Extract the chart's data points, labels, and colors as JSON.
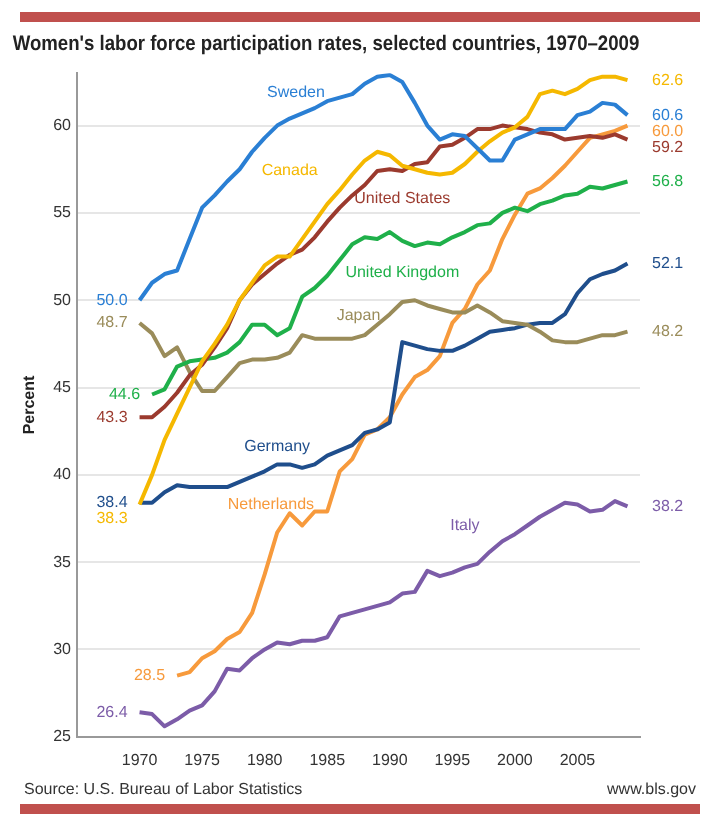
{
  "chart_data": {
    "type": "line",
    "title": "Women's labor force participation rates, selected countries, 1970–2009",
    "ylabel": "Percent",
    "annotations": [
      "Source: U.S. Bureau of Labor Statistics",
      "www.bls.gov"
    ],
    "x": [
      1970,
      1971,
      1972,
      1973,
      1974,
      1975,
      1976,
      1977,
      1978,
      1979,
      1980,
      1981,
      1982,
      1983,
      1984,
      1985,
      1986,
      1987,
      1988,
      1989,
      1990,
      1991,
      1992,
      1993,
      1994,
      1995,
      1996,
      1997,
      1998,
      1999,
      2000,
      2001,
      2002,
      2003,
      2004,
      2005,
      2006,
      2007,
      2008,
      2009
    ],
    "xlim": [
      1965,
      2010
    ],
    "xticks": [
      1970,
      1975,
      1980,
      1985,
      1990,
      1995,
      2000,
      2005
    ],
    "ylim": [
      25,
      63
    ],
    "yticks": [
      25,
      30,
      35,
      40,
      45,
      50,
      55,
      60
    ],
    "grid": "y",
    "series": [
      {
        "name": "Sweden",
        "color": "#2a7fd4",
        "values": [
          50.0,
          51.0,
          51.5,
          51.7,
          53.5,
          55.3,
          56.0,
          56.8,
          57.5,
          58.5,
          59.3,
          60.0,
          60.4,
          60.7,
          61.0,
          61.4,
          61.6,
          61.8,
          62.4,
          62.8,
          62.9,
          62.5,
          61.3,
          60.0,
          59.2,
          59.5,
          59.4,
          58.7,
          58.0,
          58.0,
          59.2,
          59.5,
          59.8,
          59.8,
          59.8,
          60.6,
          60.8,
          61.3,
          61.2,
          60.6
        ],
        "value_labels": [
          "50.0",
          null,
          null,
          null,
          null,
          null,
          null,
          null,
          null,
          null,
          null,
          null,
          null,
          null,
          null,
          null,
          null,
          null,
          null,
          null,
          null,
          null,
          null,
          null,
          null,
          null,
          null,
          null,
          null,
          null,
          null,
          null,
          null,
          null,
          null,
          null,
          null,
          null,
          null,
          "60.6"
        ]
      },
      {
        "name": "Canada",
        "color": "#f5b800",
        "values": [
          38.3,
          40.0,
          42.0,
          43.5,
          45.0,
          46.5,
          47.5,
          48.6,
          50.0,
          51.0,
          52.0,
          52.5,
          52.5,
          53.5,
          54.5,
          55.5,
          56.3,
          57.2,
          58.0,
          58.5,
          58.3,
          57.7,
          57.5,
          57.3,
          57.2,
          57.3,
          57.8,
          58.5,
          59.1,
          59.6,
          59.9,
          60.5,
          61.8,
          62.0,
          61.8,
          62.1,
          62.6,
          62.8,
          62.8,
          62.6
        ],
        "value_labels": [
          "38.3",
          null,
          null,
          null,
          null,
          null,
          null,
          null,
          null,
          null,
          null,
          null,
          null,
          null,
          null,
          null,
          null,
          null,
          null,
          null,
          null,
          null,
          null,
          null,
          null,
          null,
          null,
          null,
          null,
          null,
          null,
          null,
          null,
          null,
          null,
          null,
          null,
          null,
          null,
          "62.6"
        ]
      },
      {
        "name": "United States",
        "color": "#9b3a2e",
        "values": [
          43.3,
          43.3,
          43.9,
          44.7,
          45.7,
          46.3,
          47.3,
          48.4,
          50.0,
          50.9,
          51.5,
          52.1,
          52.6,
          52.9,
          53.6,
          54.5,
          55.3,
          56.0,
          56.6,
          57.4,
          57.5,
          57.4,
          57.8,
          57.9,
          58.8,
          58.9,
          59.3,
          59.8,
          59.8,
          60.0,
          59.9,
          59.8,
          59.6,
          59.5,
          59.2,
          59.3,
          59.4,
          59.3,
          59.5,
          59.2
        ],
        "value_labels": [
          "43.3",
          null,
          null,
          null,
          null,
          null,
          null,
          null,
          null,
          null,
          null,
          null,
          null,
          null,
          null,
          null,
          null,
          null,
          null,
          null,
          null,
          null,
          null,
          null,
          null,
          null,
          null,
          null,
          null,
          null,
          null,
          null,
          null,
          null,
          null,
          null,
          null,
          null,
          null,
          "59.2"
        ]
      },
      {
        "name": "United Kingdom",
        "color": "#1fb04a",
        "values": [
          null,
          44.6,
          44.9,
          46.2,
          46.5,
          46.6,
          46.7,
          47.0,
          47.6,
          48.6,
          48.6,
          48.0,
          48.4,
          50.2,
          50.7,
          51.4,
          52.3,
          53.2,
          53.6,
          53.5,
          53.9,
          53.4,
          53.1,
          53.3,
          53.2,
          53.6,
          53.9,
          54.3,
          54.4,
          55.0,
          55.3,
          55.1,
          55.5,
          55.7,
          56.0,
          56.1,
          56.5,
          56.4,
          56.6,
          56.8
        ],
        "value_labels": [
          null,
          "44.6",
          null,
          null,
          null,
          null,
          null,
          null,
          null,
          null,
          null,
          null,
          null,
          null,
          null,
          null,
          null,
          null,
          null,
          null,
          null,
          null,
          null,
          null,
          null,
          null,
          null,
          null,
          null,
          null,
          null,
          null,
          null,
          null,
          null,
          null,
          null,
          null,
          null,
          "56.8"
        ]
      },
      {
        "name": "Japan",
        "color": "#9a8c5a",
        "values": [
          48.7,
          48.1,
          46.8,
          47.3,
          45.9,
          44.8,
          44.8,
          45.6,
          46.4,
          46.6,
          46.6,
          46.7,
          47.0,
          48.0,
          47.8,
          47.8,
          47.8,
          47.8,
          48.0,
          48.6,
          49.2,
          49.9,
          50.0,
          49.7,
          49.5,
          49.3,
          49.3,
          49.7,
          49.3,
          48.8,
          48.7,
          48.6,
          48.2,
          47.7,
          47.6,
          47.6,
          47.8,
          48.0,
          48.0,
          48.2
        ],
        "value_labels": [
          "48.7",
          null,
          null,
          null,
          null,
          null,
          null,
          null,
          null,
          null,
          null,
          null,
          null,
          null,
          null,
          null,
          null,
          null,
          null,
          null,
          null,
          null,
          null,
          null,
          null,
          null,
          null,
          null,
          null,
          null,
          null,
          null,
          null,
          null,
          null,
          null,
          null,
          null,
          null,
          "48.2"
        ]
      },
      {
        "name": "Germany",
        "color": "#1f4e8c",
        "values": [
          38.4,
          38.4,
          39.0,
          39.4,
          39.3,
          39.3,
          39.3,
          39.3,
          39.6,
          39.9,
          40.2,
          40.6,
          40.6,
          40.4,
          40.6,
          41.1,
          41.4,
          41.7,
          42.4,
          42.6,
          43.0,
          47.6,
          47.4,
          47.2,
          47.1,
          47.1,
          47.4,
          47.8,
          48.2,
          48.3,
          48.4,
          48.6,
          48.7,
          48.7,
          49.2,
          50.4,
          51.2,
          51.5,
          51.7,
          52.1
        ],
        "value_labels": [
          "38.4",
          null,
          null,
          null,
          null,
          null,
          null,
          null,
          null,
          null,
          null,
          null,
          null,
          null,
          null,
          null,
          null,
          null,
          null,
          null,
          null,
          null,
          null,
          null,
          null,
          null,
          null,
          null,
          null,
          null,
          null,
          null,
          null,
          null,
          null,
          null,
          null,
          null,
          null,
          "52.1"
        ]
      },
      {
        "name": "Netherlands",
        "color": "#f79a3c",
        "values": [
          null,
          null,
          null,
          28.5,
          28.7,
          29.5,
          29.9,
          30.6,
          31.0,
          32.1,
          34.3,
          36.7,
          37.8,
          37.1,
          37.9,
          37.9,
          40.2,
          40.9,
          42.3,
          42.6,
          43.3,
          44.6,
          45.6,
          46.0,
          46.8,
          48.7,
          49.5,
          50.9,
          51.7,
          53.5,
          54.9,
          56.1,
          56.4,
          57.0,
          57.7,
          58.5,
          59.3,
          59.5,
          59.7,
          60.0
        ],
        "value_labels": [
          null,
          null,
          null,
          "28.5",
          null,
          null,
          null,
          null,
          null,
          null,
          null,
          null,
          null,
          null,
          null,
          null,
          null,
          null,
          null,
          null,
          null,
          null,
          null,
          null,
          null,
          null,
          null,
          null,
          null,
          null,
          null,
          null,
          null,
          null,
          null,
          null,
          null,
          null,
          null,
          "60.0"
        ]
      },
      {
        "name": "Italy",
        "color": "#7c5ca8",
        "values": [
          26.4,
          26.3,
          25.6,
          26.0,
          26.5,
          26.8,
          27.6,
          28.9,
          28.8,
          29.5,
          30.0,
          30.4,
          30.3,
          30.5,
          30.5,
          30.7,
          31.9,
          32.1,
          32.3,
          32.5,
          32.7,
          33.2,
          33.3,
          34.5,
          34.2,
          34.4,
          34.7,
          34.9,
          35.6,
          36.2,
          36.6,
          37.1,
          37.6,
          38.0,
          38.4,
          38.3,
          37.9,
          38.0,
          38.5,
          38.2
        ],
        "value_labels": [
          "26.4",
          null,
          null,
          null,
          null,
          null,
          null,
          null,
          null,
          null,
          null,
          null,
          null,
          null,
          null,
          null,
          null,
          null,
          null,
          null,
          null,
          null,
          null,
          null,
          null,
          null,
          null,
          null,
          null,
          null,
          null,
          null,
          null,
          null,
          null,
          null,
          null,
          null,
          null,
          "38.2"
        ]
      }
    ]
  }
}
